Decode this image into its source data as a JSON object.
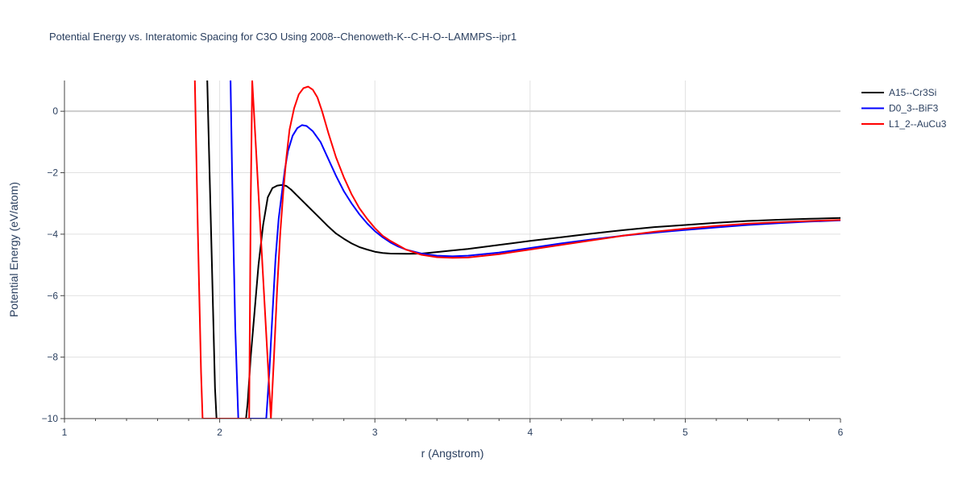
{
  "chart_data": {
    "type": "line",
    "title": "Potential Energy vs. Interatomic Spacing for C3O Using 2008--Chenoweth-K--C-H-O--LAMMPS--ipr1",
    "xlabel": "r (Angstrom)",
    "ylabel": "Potential Energy (eV/atom)",
    "xlim": [
      1,
      6
    ],
    "ylim": [
      -10,
      1
    ],
    "xticks": [
      1,
      2,
      3,
      4,
      5,
      6
    ],
    "xtick_labels": [
      "1",
      "2",
      "3",
      "4",
      "5",
      "6"
    ],
    "yticks": [
      -10,
      -8,
      -6,
      -4,
      -2,
      0
    ],
    "ytick_labels": [
      "−10",
      "−8",
      "−6",
      "−4",
      "−2",
      "0"
    ],
    "grid": true,
    "legend_position": "top-right",
    "series": [
      {
        "name": "A15--Cr3Si",
        "color": "#000000",
        "x": [
          1.92,
          1.93,
          1.95,
          1.97,
          1.98,
          2.17,
          2.18,
          2.2,
          2.22,
          2.25,
          2.28,
          2.31,
          2.34,
          2.37,
          2.4,
          2.43,
          2.46,
          2.5,
          2.55,
          2.6,
          2.65,
          2.7,
          2.75,
          2.8,
          2.85,
          2.9,
          2.95,
          3.0,
          3.05,
          3.1,
          3.2,
          3.3,
          3.4,
          3.5,
          3.6,
          3.8,
          4.0,
          4.2,
          4.4,
          4.6,
          4.8,
          5.0,
          5.2,
          5.4,
          5.6,
          5.8,
          6.0
        ],
        "y": [
          1.0,
          -1.0,
          -5.0,
          -9.0,
          -10.0,
          -10.0,
          -9.5,
          -8.0,
          -6.8,
          -5.0,
          -3.7,
          -2.8,
          -2.5,
          -2.42,
          -2.4,
          -2.43,
          -2.55,
          -2.75,
          -3.0,
          -3.25,
          -3.5,
          -3.75,
          -3.98,
          -4.15,
          -4.3,
          -4.42,
          -4.5,
          -4.57,
          -4.61,
          -4.63,
          -4.64,
          -4.63,
          -4.58,
          -4.53,
          -4.48,
          -4.35,
          -4.22,
          -4.1,
          -3.98,
          -3.87,
          -3.77,
          -3.7,
          -3.63,
          -3.57,
          -3.53,
          -3.5,
          -3.47
        ]
      },
      {
        "name": "D0_3--BiF3",
        "color": "#0000ff",
        "x": [
          2.07,
          2.08,
          2.09,
          2.1,
          2.12,
          2.3,
          2.32,
          2.34,
          2.36,
          2.38,
          2.4,
          2.42,
          2.44,
          2.47,
          2.5,
          2.53,
          2.56,
          2.6,
          2.65,
          2.7,
          2.75,
          2.8,
          2.85,
          2.9,
          2.95,
          3.0,
          3.05,
          3.1,
          3.15,
          3.2,
          3.3,
          3.4,
          3.5,
          3.6,
          3.8,
          4.0,
          4.2,
          4.4,
          4.6,
          4.8,
          5.0,
          5.2,
          5.4,
          5.6,
          5.8,
          6.0
        ],
        "y": [
          1.0,
          -2.0,
          -4.5,
          -7.0,
          -10.0,
          -10.0,
          -8.5,
          -6.6,
          -4.8,
          -3.5,
          -2.7,
          -1.9,
          -1.3,
          -0.8,
          -0.55,
          -0.45,
          -0.48,
          -0.65,
          -1.0,
          -1.55,
          -2.1,
          -2.6,
          -3.0,
          -3.35,
          -3.65,
          -3.9,
          -4.1,
          -4.27,
          -4.4,
          -4.5,
          -4.63,
          -4.7,
          -4.72,
          -4.7,
          -4.6,
          -4.45,
          -4.3,
          -4.17,
          -4.05,
          -3.95,
          -3.86,
          -3.78,
          -3.7,
          -3.64,
          -3.59,
          -3.55
        ]
      },
      {
        "name": "L1_2--AuCu3",
        "color": "#ff0000",
        "x": [
          1.84,
          1.86,
          1.88,
          1.89,
          2.19,
          2.2,
          2.21,
          2.33,
          2.35,
          2.37,
          2.39,
          2.41,
          2.43,
          2.45,
          2.48,
          2.51,
          2.54,
          2.57,
          2.6,
          2.63,
          2.66,
          2.7,
          2.75,
          2.8,
          2.85,
          2.9,
          2.95,
          3.0,
          3.05,
          3.1,
          3.2,
          3.3,
          3.4,
          3.5,
          3.6,
          3.8,
          4.0,
          4.2,
          4.4,
          4.6,
          4.8,
          5.0,
          5.2,
          5.4,
          5.6,
          5.8,
          6.0
        ],
        "y": [
          1.0,
          -4.0,
          -8.5,
          -10.0,
          -10.0,
          -3.0,
          1.0,
          -10.0,
          -8.0,
          -5.8,
          -4.0,
          -2.6,
          -1.5,
          -0.6,
          0.1,
          0.55,
          0.75,
          0.8,
          0.7,
          0.45,
          0.0,
          -0.7,
          -1.5,
          -2.15,
          -2.7,
          -3.15,
          -3.5,
          -3.8,
          -4.05,
          -4.22,
          -4.5,
          -4.67,
          -4.75,
          -4.77,
          -4.76,
          -4.65,
          -4.5,
          -4.35,
          -4.2,
          -4.05,
          -3.92,
          -3.82,
          -3.73,
          -3.66,
          -3.61,
          -3.57,
          -3.54
        ]
      }
    ]
  }
}
